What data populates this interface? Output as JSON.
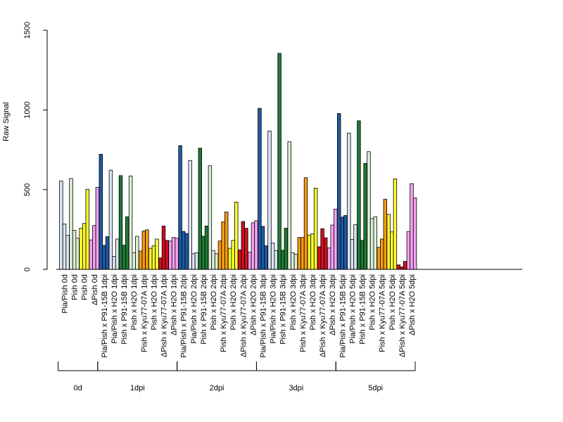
{
  "chart_data": {
    "type": "bar",
    "ylabel": "Raw Signal",
    "xlabel": "",
    "title": "",
    "ylim": [
      0,
      1500
    ],
    "yticks": [
      0,
      500,
      1000,
      1500
    ],
    "grid": false,
    "colors": {
      "Pia/Pish": "#1f5ba6",
      "Pia/Pish x H2O": "#dbe6f4",
      "Pish x P91-15B": "#1f7a35",
      "Pish x H2O": "#dcefd8",
      "Pish x Kyu77-07A": "#f59b12",
      "Pish yellow": "#ffff33",
      "ΔPish x Kyu77-07A": "#d0101e",
      "ΔPish x H2O": "#f5a2f0"
    },
    "categories": [
      {
        "label": "Pia/Pish 0d",
        "color": "#dbe6f4",
        "values": [
          555,
          285,
          213
        ]
      },
      {
        "label": "Pish 0d",
        "color": "#dcefd8",
        "values": [
          570,
          245,
          195
        ]
      },
      {
        "label": "Pish 0d",
        "color": "#ffff33",
        "values": [
          258,
          288,
          502
        ]
      },
      {
        "label": "ΔPish 0d",
        "color": "#f5a2f0",
        "values": [
          185,
          275,
          515
        ]
      },
      {
        "label": "Pia/Pish x P91-15B 1dpi",
        "color": "#1f5ba6",
        "values": [
          722,
          150,
          205
        ]
      },
      {
        "label": "Pia/Pish x H2O 1dpi",
        "color": "#dbe6f4",
        "values": [
          622,
          82,
          190
        ]
      },
      {
        "label": "Pish x P91-15B 1dpi",
        "color": "#1f7a35",
        "values": [
          588,
          152,
          330
        ]
      },
      {
        "label": "Pish x H2O 1dpi",
        "color": "#dcefd8",
        "values": [
          586,
          105,
          207
        ]
      },
      {
        "label": "Pish x Kyu77-07A 1dpi",
        "color": "#f59b12",
        "values": [
          115,
          240,
          248
        ]
      },
      {
        "label": "Pish x H2O 1dpi",
        "color": "#ffff33",
        "values": [
          132,
          148,
          190
        ]
      },
      {
        "label": "ΔPish x Kyu77-07A 1dpi",
        "color": "#d0101e",
        "values": [
          72,
          272,
          182
        ]
      },
      {
        "label": "ΔPish x H2O 1dpi",
        "color": "#f5a2f0",
        "values": [
          178,
          200,
          195
        ]
      },
      {
        "label": "Pia/Pish x P91-15B 2dpi",
        "color": "#1f5ba6",
        "values": [
          776,
          238,
          225
        ]
      },
      {
        "label": "Pia/Pish x H2O 2dpi",
        "color": "#dbe6f4",
        "values": [
          683,
          98,
          105
        ]
      },
      {
        "label": "Pish x P91-15B 2dpi",
        "color": "#1f7a35",
        "values": [
          760,
          208,
          272
        ]
      },
      {
        "label": "Pish x H2O 2dpi",
        "color": "#dcefd8",
        "values": [
          650,
          118,
          98
        ]
      },
      {
        "label": "Pish x Kyu77-07A 2dpi",
        "color": "#f59b12",
        "values": [
          178,
          298,
          360
        ]
      },
      {
        "label": "Pish x H2O 2dpi",
        "color": "#ffff33",
        "values": [
          132,
          182,
          422
        ]
      },
      {
        "label": "ΔPish x Kyu77-07A 2dpi",
        "color": "#d0101e",
        "values": [
          122,
          300,
          258
        ]
      },
      {
        "label": "ΔPish x H2O 2dpi",
        "color": "#f5a2f0",
        "values": [
          108,
          292,
          305
        ]
      },
      {
        "label": "Pia/Pish x P91-15B 3dpi",
        "color": "#1f5ba6",
        "values": [
          1010,
          270,
          148
        ]
      },
      {
        "label": "Pia/Pish x H2O 3dpi",
        "color": "#dbe6f4",
        "values": [
          868,
          165,
          118
        ]
      },
      {
        "label": "Pish x P91-15B 3dpi",
        "color": "#1f7a35",
        "values": [
          1355,
          120,
          258
        ]
      },
      {
        "label": "Pish x H2O 3dpi",
        "color": "#dcefd8",
        "values": [
          800,
          105,
          95
        ]
      },
      {
        "label": "Pish x Kyu77-07A 3dpi",
        "color": "#f59b12",
        "values": [
          200,
          200,
          575
        ]
      },
      {
        "label": "Pish x H2O 3dpi",
        "color": "#ffff33",
        "values": [
          215,
          222,
          510
        ]
      },
      {
        "label": "ΔPish x Kyu77-07A 3dpi",
        "color": "#d0101e",
        "values": [
          142,
          255,
          198
        ]
      },
      {
        "label": "ΔPish x H2O 3dpi",
        "color": "#f5a2f0",
        "values": [
          135,
          278,
          378
        ]
      },
      {
        "label": "Pia/Pish x P91-15B 5dpi",
        "color": "#1f5ba6",
        "values": [
          978,
          328,
          338
        ]
      },
      {
        "label": "Pia/Pish x H2O 5dpi",
        "color": "#dbe6f4",
        "values": [
          855,
          188,
          280
        ]
      },
      {
        "label": "Pish x P91-15B 5dpi",
        "color": "#1f7a35",
        "values": [
          932,
          182,
          665
        ]
      },
      {
        "label": "Pish x H2O 5dpi",
        "color": "#dcefd8",
        "values": [
          738,
          318,
          330
        ]
      },
      {
        "label": "Pish x Kyu77-07A 5dpi",
        "color": "#f59b12",
        "values": [
          138,
          190,
          440
        ]
      },
      {
        "label": "Pish x H2O 5dpi",
        "color": "#ffff33",
        "values": [
          345,
          235,
          568
        ]
      },
      {
        "label": "ΔPish x Kyu77-07A 5dpi",
        "color": "#d0101e",
        "values": [
          28,
          15,
          50
        ]
      },
      {
        "label": "ΔPish x H2O 5dpi",
        "color": "#f5a2f0",
        "values": [
          238,
          538,
          448
        ]
      }
    ],
    "groups": [
      {
        "label": "0d",
        "from": 0,
        "to": 3
      },
      {
        "label": "1dpi",
        "from": 4,
        "to": 11
      },
      {
        "label": "2dpi",
        "from": 12,
        "to": 19
      },
      {
        "label": "3dpi",
        "from": 20,
        "to": 27
      },
      {
        "label": "5dpi",
        "from": 28,
        "to": 35
      }
    ]
  }
}
